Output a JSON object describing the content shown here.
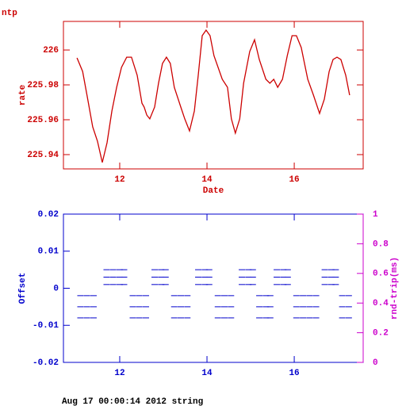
{
  "footer": "Aug 17 00:00:14 2012 string",
  "chart_data": [
    {
      "type": "line",
      "title": "ntp",
      "xlabel": "Date",
      "ylabel": "rate",
      "color": "#cc0000",
      "xlim": [
        10.71,
        17.58
      ],
      "xticks": [
        12,
        14,
        16
      ],
      "ylim": [
        225.9318,
        226.0164
      ],
      "yticks": [
        226,
        225.98,
        225.96,
        225.94
      ],
      "x": [
        11.02,
        11.15,
        11.25,
        11.38,
        11.49,
        11.6,
        11.71,
        11.82,
        11.93,
        12.04,
        12.16,
        12.27,
        12.4,
        12.51,
        12.56,
        12.62,
        12.69,
        12.8,
        12.89,
        12.98,
        13.07,
        13.16,
        13.25,
        13.4,
        13.49,
        13.6,
        13.71,
        13.8,
        13.89,
        13.98,
        14.07,
        14.16,
        14.35,
        14.47,
        14.56,
        14.65,
        14.75,
        14.84,
        14.98,
        15.09,
        15.2,
        15.35,
        15.44,
        15.53,
        15.62,
        15.73,
        15.84,
        15.95,
        16.05,
        16.16,
        16.31,
        16.44,
        16.58,
        16.69,
        16.8,
        16.89,
        16.98,
        17.07,
        17.18,
        17.27
      ],
      "values": [
        225.9955,
        225.9877,
        225.9741,
        225.9559,
        225.9477,
        225.9355,
        225.9468,
        225.965,
        225.9786,
        225.99,
        225.9959,
        225.9959,
        225.9855,
        225.9695,
        225.9673,
        225.9627,
        225.9605,
        225.9673,
        225.9809,
        225.9923,
        225.9959,
        225.9923,
        225.9786,
        225.9673,
        225.9605,
        225.9536,
        225.965,
        225.9855,
        226.0082,
        226.0114,
        226.0082,
        225.9968,
        225.9832,
        225.9786,
        225.9605,
        225.9523,
        225.9605,
        225.9809,
        225.9991,
        226.0059,
        225.9945,
        225.9832,
        225.9809,
        225.9832,
        225.9786,
        225.9832,
        225.9968,
        226.0082,
        226.0082,
        226.0014,
        225.9832,
        225.9741,
        225.9636,
        225.9718,
        225.9877,
        225.9945,
        225.9959,
        225.9945,
        225.9855,
        225.9741
      ]
    },
    {
      "type": "scatter",
      "ylabel": "Offset",
      "y2label": "rnd-trip(ms)",
      "color": "#0000cc",
      "y2_color": "#cc00cc",
      "xlim": [
        10.71,
        17.58
      ],
      "xticks": [
        12,
        14,
        16
      ],
      "ylim": [
        -0.02,
        0.02
      ],
      "yticks": [
        -0.02,
        -0.01,
        0,
        0.01,
        0.02
      ],
      "y2lim": [
        0,
        1
      ],
      "y2ticks": [
        0,
        0.2,
        0.4,
        0.6,
        0.8,
        1
      ],
      "x": [
        11.1,
        11.1,
        11.1,
        11.25,
        11.25,
        11.25,
        11.4,
        11.4,
        11.4,
        11.7,
        11.7,
        11.7,
        11.85,
        11.85,
        11.85,
        12.0,
        12.0,
        12.0,
        12.1,
        12.1,
        12.1,
        12.3,
        12.3,
        12.3,
        12.45,
        12.45,
        12.45,
        12.6,
        12.6,
        12.6,
        12.8,
        12.8,
        12.8,
        12.95,
        12.95,
        12.95,
        13.05,
        13.05,
        13.05,
        13.25,
        13.25,
        13.25,
        13.4,
        13.4,
        13.4,
        13.55,
        13.55,
        13.55,
        13.8,
        13.8,
        13.8,
        13.95,
        13.95,
        13.95,
        14.05,
        14.05,
        14.05,
        14.25,
        14.25,
        14.25,
        14.4,
        14.4,
        14.4,
        14.55,
        14.55,
        14.55,
        14.8,
        14.8,
        14.8,
        14.95,
        14.95,
        14.95,
        15.05,
        15.05,
        15.05,
        15.2,
        15.2,
        15.2,
        15.35,
        15.35,
        15.35,
        15.45,
        15.45,
        15.45,
        15.6,
        15.6,
        15.6,
        15.75,
        15.75,
        15.75,
        15.85,
        15.85,
        15.85,
        16.05,
        16.05,
        16.05,
        16.2,
        16.2,
        16.2,
        16.35,
        16.35,
        16.35,
        16.5,
        16.5,
        16.5,
        16.7,
        16.7,
        16.7,
        16.85,
        16.85,
        16.85,
        16.95,
        16.95,
        16.95,
        17.1,
        17.1,
        17.1,
        17.25,
        17.25,
        17.25
      ],
      "values": [
        -0.002,
        -0.005,
        -0.008,
        -0.002,
        -0.005,
        -0.008,
        -0.002,
        -0.005,
        -0.008,
        0.001,
        0.003,
        0.005,
        0.001,
        0.003,
        0.005,
        0.001,
        0.003,
        0.005,
        0.001,
        0.003,
        0.005,
        -0.002,
        -0.005,
        -0.008,
        -0.002,
        -0.005,
        -0.008,
        -0.002,
        -0.005,
        -0.008,
        0.001,
        0.003,
        0.005,
        0.001,
        0.003,
        0.005,
        0.001,
        0.003,
        0.005,
        -0.002,
        -0.005,
        -0.008,
        -0.002,
        -0.005,
        -0.008,
        -0.002,
        -0.005,
        -0.008,
        0.001,
        0.003,
        0.005,
        0.001,
        0.003,
        0.005,
        0.001,
        0.003,
        0.005,
        -0.002,
        -0.005,
        -0.008,
        -0.002,
        -0.005,
        -0.008,
        -0.002,
        -0.005,
        -0.008,
        0.001,
        0.003,
        0.005,
        0.001,
        0.003,
        0.005,
        0.001,
        0.003,
        0.005,
        -0.002,
        -0.005,
        -0.008,
        -0.002,
        -0.005,
        -0.008,
        -0.002,
        -0.005,
        -0.008,
        0.001,
        0.003,
        0.005,
        0.001,
        0.003,
        0.005,
        0.001,
        0.003,
        0.005,
        -0.002,
        -0.005,
        -0.008,
        -0.002,
        -0.005,
        -0.008,
        -0.002,
        -0.005,
        -0.008,
        -0.002,
        -0.005,
        -0.008,
        0.001,
        0.003,
        0.005,
        0.001,
        0.003,
        0.005,
        0.001,
        0.003,
        0.005,
        -0.002,
        -0.005,
        -0.008,
        -0.002,
        -0.005,
        -0.008
      ]
    }
  ]
}
